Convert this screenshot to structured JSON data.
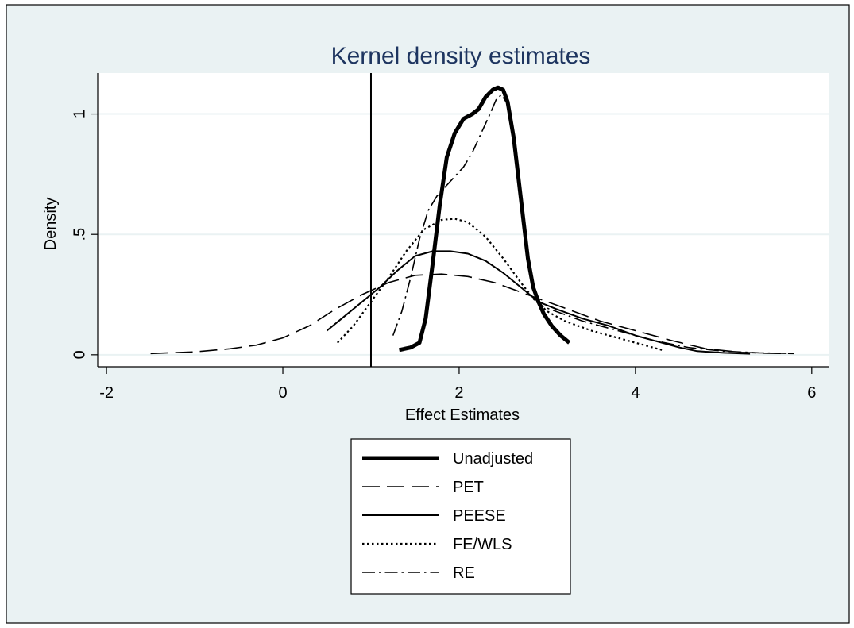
{
  "chart_data": {
    "type": "line",
    "title": "Kernel density estimates",
    "xlabel": "Effect Estimates",
    "ylabel": "Density",
    "xlim": [
      -2.1,
      6.2
    ],
    "ylim": [
      -0.05,
      1.17
    ],
    "xticks": [
      {
        "value": -2,
        "label": "-2"
      },
      {
        "value": 0,
        "label": "0"
      },
      {
        "value": 2,
        "label": "2"
      },
      {
        "value": 4,
        "label": "4"
      },
      {
        "value": 6,
        "label": "6"
      }
    ],
    "yticks": [
      {
        "value": 0,
        "label": "0"
      },
      {
        "value": 0.5,
        "label": ".5"
      },
      {
        "value": 1,
        "label": "1"
      }
    ],
    "grid": true,
    "legend_position": "bottom",
    "reference_line_x": 1,
    "colors": {
      "outer_background": "#eaf2f3",
      "plot_background": "#ffffff",
      "grid": "#eaf2f3",
      "title": "#1e3560",
      "lines": "#000000"
    },
    "series": [
      {
        "name": "Unadjusted",
        "style": "thick-solid",
        "x": [
          1.32,
          1.45,
          1.55,
          1.62,
          1.7,
          1.78,
          1.86,
          1.95,
          2.05,
          2.15,
          2.22,
          2.3,
          2.38,
          2.44,
          2.5,
          2.55,
          2.62,
          2.7,
          2.78,
          2.84,
          2.9,
          2.96,
          3.05,
          3.15,
          3.25
        ],
        "y": [
          0.02,
          0.03,
          0.05,
          0.15,
          0.38,
          0.62,
          0.82,
          0.92,
          0.98,
          1.0,
          1.02,
          1.07,
          1.1,
          1.11,
          1.1,
          1.05,
          0.9,
          0.65,
          0.4,
          0.28,
          0.22,
          0.17,
          0.12,
          0.08,
          0.05
        ]
      },
      {
        "name": "PET",
        "style": "long-dash",
        "x": [
          -1.5,
          -1.0,
          -0.6,
          -0.3,
          0.0,
          0.3,
          0.6,
          0.9,
          1.2,
          1.5,
          1.8,
          2.1,
          2.4,
          2.7,
          3.0,
          3.3,
          3.6,
          4.0,
          4.4,
          4.8,
          5.2,
          5.5,
          5.8
        ],
        "y": [
          0.005,
          0.012,
          0.025,
          0.04,
          0.07,
          0.12,
          0.19,
          0.25,
          0.3,
          0.33,
          0.335,
          0.325,
          0.3,
          0.26,
          0.22,
          0.18,
          0.14,
          0.1,
          0.06,
          0.025,
          0.01,
          0.006,
          0.005
        ]
      },
      {
        "name": "PEESE",
        "style": "solid",
        "x": [
          0.5,
          0.7,
          0.9,
          1.1,
          1.3,
          1.5,
          1.7,
          1.9,
          2.1,
          2.3,
          2.5,
          2.7,
          2.9,
          3.1,
          3.4,
          3.7,
          4.0,
          4.3,
          4.5,
          4.7,
          5.0,
          5.3
        ],
        "y": [
          0.1,
          0.16,
          0.22,
          0.28,
          0.35,
          0.41,
          0.43,
          0.43,
          0.42,
          0.39,
          0.34,
          0.28,
          0.22,
          0.19,
          0.15,
          0.12,
          0.08,
          0.05,
          0.03,
          0.015,
          0.008,
          0.004
        ]
      },
      {
        "name": "FE/WLS",
        "style": "dotted",
        "x": [
          0.62,
          0.8,
          1.0,
          1.2,
          1.4,
          1.6,
          1.8,
          1.95,
          2.1,
          2.3,
          2.5,
          2.7,
          2.85,
          3.0,
          3.2,
          3.5,
          3.8,
          4.1,
          4.3
        ],
        "y": [
          0.05,
          0.12,
          0.22,
          0.32,
          0.43,
          0.52,
          0.56,
          0.565,
          0.55,
          0.49,
          0.4,
          0.3,
          0.23,
          0.18,
          0.14,
          0.1,
          0.07,
          0.04,
          0.02
        ]
      },
      {
        "name": "RE",
        "style": "dash-dot",
        "x": [
          1.25,
          1.35,
          1.45,
          1.55,
          1.65,
          1.75,
          1.85,
          1.95,
          2.05,
          2.15,
          2.25,
          2.35,
          2.42,
          2.48,
          2.55,
          2.62,
          2.7,
          2.78,
          2.86,
          2.95,
          3.1,
          3.4,
          3.8,
          4.2,
          4.6,
          5.0,
          5.4,
          5.8
        ],
        "y": [
          0.08,
          0.18,
          0.32,
          0.48,
          0.6,
          0.66,
          0.7,
          0.74,
          0.78,
          0.84,
          0.92,
          1.0,
          1.06,
          1.08,
          1.04,
          0.9,
          0.65,
          0.38,
          0.24,
          0.2,
          0.18,
          0.14,
          0.1,
          0.06,
          0.03,
          0.015,
          0.008,
          0.005
        ]
      }
    ]
  }
}
